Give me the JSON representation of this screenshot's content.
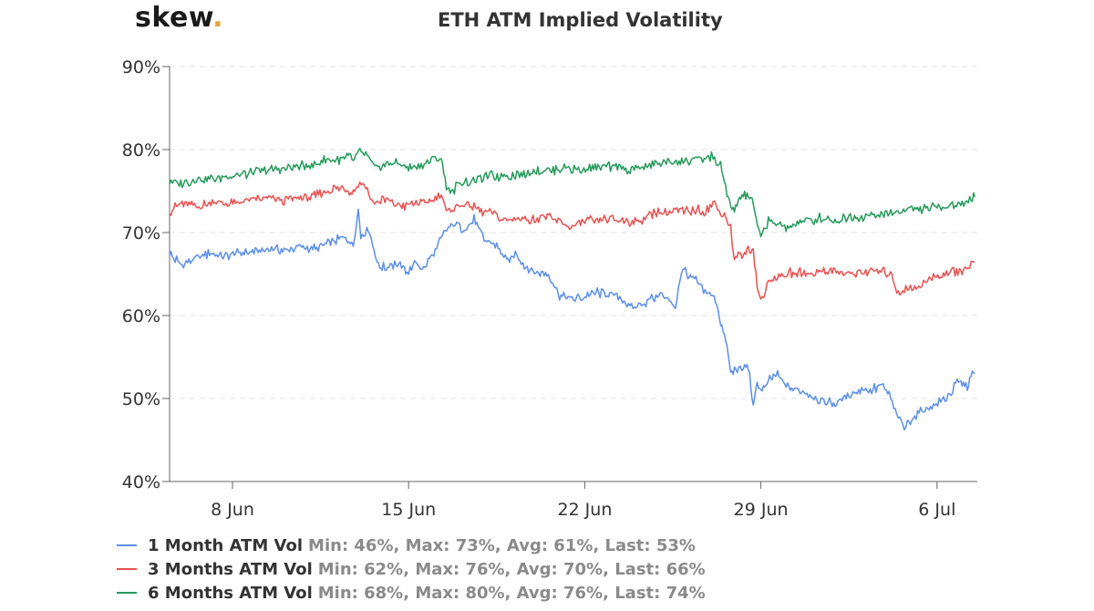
{
  "logo": {
    "text": "skew",
    "dot": "."
  },
  "chart_data": {
    "type": "line",
    "title": "ETH ATM Implied Volatility",
    "xlabel": "",
    "ylabel": "",
    "ylim": [
      40,
      90
    ],
    "y_ticks": [
      "40%",
      "50%",
      "60%",
      "70%",
      "80%",
      "90%"
    ],
    "x_range_days": [
      4.5,
      36.6
    ],
    "x_ticks": [
      {
        "label": "8 Jun",
        "day": 7
      },
      {
        "label": "15 Jun",
        "day": 14
      },
      {
        "label": "22 Jun",
        "day": 21
      },
      {
        "label": "29 Jun",
        "day": 28
      },
      {
        "label": "6 Jul",
        "day": 35
      }
    ],
    "grid": "horizontal dashed",
    "legend_position": "bottom-left",
    "series": [
      {
        "name": "1 Month ATM Vol",
        "stats": "Min: 46%, Max: 73%, Avg: 61%, Last: 53%",
        "color": "#5b8ee6",
        "x": [
          4.5,
          5.0,
          5.6,
          6.2,
          6.8,
          7.3,
          7.8,
          8.5,
          9.0,
          9.7,
          10.3,
          10.9,
          11.5,
          11.8,
          12.0,
          12.1,
          12.4,
          12.8,
          13.0,
          13.5,
          14.0,
          14.3,
          14.6,
          15.0,
          15.4,
          15.8,
          16.2,
          16.6,
          17.0,
          17.5,
          17.9,
          18.3,
          18.6,
          19.0,
          19.5,
          20.0,
          20.5,
          21.0,
          21.5,
          22.0,
          22.5,
          22.8,
          23.2,
          23.6,
          24.0,
          24.3,
          24.6,
          24.9,
          25.1,
          25.3,
          25.6,
          25.9,
          26.2,
          26.4,
          26.6,
          26.8,
          27.0,
          27.3,
          27.5,
          27.7,
          27.85,
          28.0,
          28.2,
          28.4,
          28.6,
          29.0,
          29.5,
          30.0,
          30.5,
          31.0,
          31.5,
          32.0,
          32.4,
          32.8,
          33.1,
          33.4,
          33.7,
          34.0,
          34.4,
          34.8,
          35.2,
          35.5,
          35.8,
          36.0,
          36.2,
          36.4,
          36.5
        ],
        "values": [
          67.5,
          66.0,
          67.0,
          67.5,
          67.2,
          67.5,
          67.8,
          68.0,
          67.9,
          68.3,
          68.0,
          68.8,
          69.5,
          68.5,
          73.0,
          69.5,
          70.5,
          66.0,
          65.8,
          66.2,
          65.3,
          66.3,
          65.6,
          67.5,
          69.8,
          71.0,
          70.5,
          71.5,
          69.0,
          68.5,
          66.5,
          67.5,
          66.0,
          65.2,
          65.1,
          62.5,
          62.0,
          62.3,
          62.8,
          62.5,
          62.0,
          61.0,
          61.2,
          62.0,
          62.5,
          62.0,
          61.0,
          66.0,
          64.5,
          64.5,
          63.5,
          62.8,
          62.0,
          59.0,
          57.0,
          53.0,
          53.5,
          53.5,
          54.0,
          49.0,
          52.0,
          51.0,
          51.5,
          52.5,
          53.0,
          51.5,
          50.8,
          50.5,
          49.5,
          49.5,
          50.5,
          51.2,
          51.0,
          51.5,
          50.5,
          48.0,
          46.5,
          47.5,
          48.5,
          49.2,
          49.8,
          50.5,
          51.8,
          52.0,
          51.5,
          53.0,
          53.0
        ]
      },
      {
        "name": "3 Months ATM Vol",
        "stats": "Min: 62%, Max: 76%, Avg: 70%, Last: 66%",
        "color": "#e85050",
        "x": [
          4.5,
          5.0,
          5.6,
          6.2,
          6.8,
          7.5,
          8.0,
          8.5,
          9.0,
          9.6,
          10.2,
          10.8,
          11.4,
          11.6,
          11.8,
          12.0,
          12.3,
          12.6,
          13.0,
          13.4,
          13.9,
          14.3,
          14.6,
          15.0,
          15.3,
          15.5,
          15.8,
          16.2,
          16.6,
          17.0,
          17.4,
          17.8,
          18.3,
          18.8,
          19.0,
          19.4,
          20.0,
          20.4,
          21.0,
          21.5,
          22.0,
          22.5,
          23.0,
          23.4,
          23.8,
          24.2,
          24.6,
          25.0,
          25.4,
          25.8,
          26.1,
          26.4,
          26.6,
          26.8,
          26.95,
          27.1,
          27.3,
          27.5,
          27.7,
          27.85,
          28.0,
          28.3,
          28.6,
          29.0,
          29.5,
          30.0,
          30.5,
          31.0,
          31.5,
          32.0,
          32.5,
          33.0,
          33.2,
          33.4,
          33.7,
          34.0,
          34.4,
          34.8,
          35.2,
          35.6,
          36.0,
          36.3,
          36.5
        ],
        "values": [
          72.5,
          73.5,
          73.0,
          73.8,
          73.4,
          73.8,
          74.0,
          74.2,
          73.8,
          74.3,
          74.3,
          75.0,
          75.5,
          75.2,
          74.8,
          76.0,
          75.5,
          73.5,
          74.0,
          73.5,
          73.2,
          73.6,
          73.5,
          74.0,
          74.5,
          72.5,
          73.0,
          73.5,
          73.0,
          72.5,
          72.2,
          71.5,
          71.8,
          71.5,
          71.6,
          72.0,
          71.4,
          70.6,
          71.4,
          71.4,
          71.6,
          71.4,
          71.3,
          71.8,
          72.5,
          72.3,
          72.6,
          72.5,
          72.8,
          72.6,
          73.5,
          72.5,
          72.0,
          70.5,
          66.5,
          67.5,
          67.0,
          68.0,
          68.0,
          63.5,
          61.8,
          64.0,
          64.5,
          65.0,
          65.2,
          65.0,
          65.5,
          65.3,
          65.0,
          65.3,
          65.4,
          65.2,
          65.0,
          63.0,
          63.0,
          63.3,
          63.8,
          64.5,
          65.0,
          65.3,
          65.5,
          66.0,
          66.5
        ]
      },
      {
        "name": "6 Months ATM Vol",
        "stats": "Min: 68%, Max: 80%, Avg: 76%, Last: 74%",
        "color": "#249a5a",
        "x": [
          4.5,
          5.0,
          5.6,
          6.2,
          6.8,
          7.5,
          8.0,
          8.5,
          9.0,
          9.6,
          10.2,
          10.8,
          11.4,
          11.6,
          11.8,
          12.0,
          12.3,
          12.6,
          13.0,
          13.5,
          14.0,
          14.5,
          14.8,
          15.0,
          15.3,
          15.5,
          15.7,
          16.0,
          16.4,
          16.8,
          17.3,
          17.8,
          18.3,
          18.8,
          19.3,
          19.8,
          20.3,
          20.8,
          21.3,
          21.8,
          22.3,
          22.8,
          23.3,
          23.8,
          24.3,
          24.8,
          25.3,
          25.8,
          26.1,
          26.4,
          26.6,
          26.8,
          26.95,
          27.1,
          27.3,
          27.5,
          27.7,
          27.85,
          28.0,
          28.3,
          28.6,
          29.0,
          29.5,
          30.0,
          30.5,
          31.0,
          31.5,
          32.0,
          32.5,
          33.0,
          33.5,
          34.0,
          34.5,
          35.0,
          35.5,
          36.0,
          36.3,
          36.5
        ],
        "values": [
          76.2,
          75.8,
          76.5,
          76.5,
          76.8,
          77.0,
          77.3,
          77.5,
          77.8,
          77.9,
          78.2,
          78.8,
          78.8,
          79.2,
          78.5,
          79.8,
          79.5,
          77.8,
          78.2,
          78.5,
          77.8,
          78.2,
          78.5,
          79.0,
          78.8,
          75.5,
          74.8,
          76.0,
          76.2,
          76.5,
          76.8,
          76.8,
          77.0,
          77.2,
          77.5,
          77.6,
          77.8,
          77.5,
          77.8,
          77.8,
          78.0,
          77.5,
          78.0,
          78.2,
          78.5,
          78.5,
          78.8,
          78.8,
          79.2,
          78.0,
          75.5,
          73.0,
          72.5,
          74.0,
          74.5,
          74.5,
          73.5,
          71.0,
          69.5,
          71.5,
          71.0,
          70.5,
          71.3,
          71.5,
          71.8,
          71.5,
          71.9,
          72.0,
          72.0,
          72.3,
          72.6,
          73.0,
          72.8,
          73.0,
          73.2,
          73.5,
          74.0,
          74.3
        ]
      }
    ]
  }
}
